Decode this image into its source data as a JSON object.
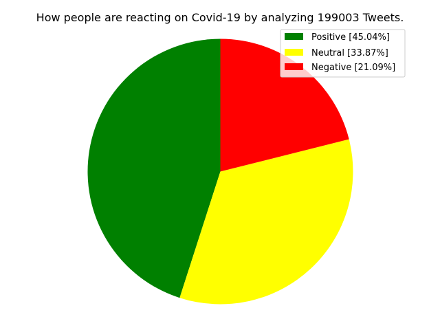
{
  "chart_data": {
    "type": "pie",
    "title": "How people are reacting on Covid-19 by analyzing 199003 Tweets.",
    "start_angle_deg": 90,
    "direction": "counterclockwise",
    "legend_position": "top-right",
    "slices": [
      {
        "label": "Positive [45.04%]",
        "value": 45.04,
        "color": "#008000"
      },
      {
        "label": "Neutral [33.87%]",
        "value": 33.87,
        "color": "#ffff00"
      },
      {
        "label": "Negative [21.09%]",
        "value": 21.09,
        "color": "#ff0000"
      }
    ]
  }
}
